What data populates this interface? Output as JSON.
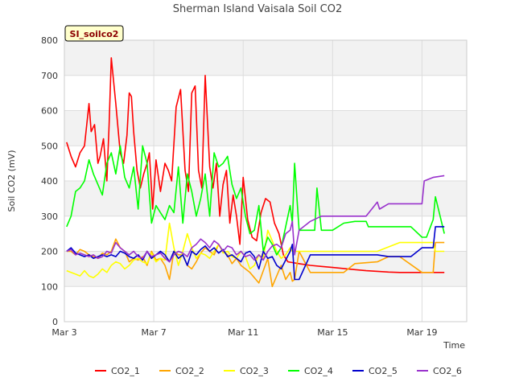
{
  "chart_data": {
    "type": "line",
    "title": "Sherman Island Vaisala Soil CO2",
    "tag": "SI_soilco2",
    "xlabel": "Time",
    "ylabel": "Soil CO2 (mV)",
    "xlim": [
      0,
      18
    ],
    "ylim": [
      0,
      800
    ],
    "yticks": [
      0,
      100,
      200,
      300,
      400,
      500,
      600,
      700,
      800
    ],
    "xticks": [
      {
        "x": 0,
        "label": "Mar 3"
      },
      {
        "x": 4,
        "label": "Mar 7"
      },
      {
        "x": 8,
        "label": "Mar 11"
      },
      {
        "x": 12,
        "label": "Mar 15"
      },
      {
        "x": 16,
        "label": "Mar 19"
      }
    ],
    "grid": true,
    "legend_position": "bottom",
    "series": [
      {
        "name": "CO2_1",
        "color": "#ff0000",
        "x": [
          0.1,
          0.3,
          0.5,
          0.7,
          0.9,
          1.1,
          1.2,
          1.35,
          1.5,
          1.6,
          1.75,
          1.9,
          2.0,
          2.1,
          2.3,
          2.5,
          2.65,
          2.8,
          2.9,
          3.0,
          3.1,
          3.25,
          3.4,
          3.55,
          3.7,
          3.8,
          3.95,
          4.1,
          4.3,
          4.5,
          4.65,
          4.8,
          5.0,
          5.2,
          5.4,
          5.55,
          5.7,
          5.85,
          6.0,
          6.15,
          6.3,
          6.5,
          6.65,
          6.8,
          6.95,
          7.1,
          7.25,
          7.4,
          7.55,
          7.7,
          7.85,
          8.0,
          8.2,
          8.4,
          8.6,
          8.8,
          9.0,
          9.2,
          9.4,
          9.6,
          9.8,
          10.0,
          10.2,
          10.4,
          10.6,
          10.8,
          11.0,
          11.5,
          12.0,
          12.5,
          13.0,
          13.5,
          14.0,
          14.5,
          15.0,
          15.5,
          16.0,
          16.5,
          17.0
        ],
        "y": [
          510,
          470,
          440,
          480,
          500,
          620,
          540,
          560,
          450,
          470,
          520,
          400,
          560,
          750,
          620,
          480,
          450,
          530,
          650,
          640,
          540,
          430,
          380,
          420,
          450,
          480,
          320,
          460,
          370,
          450,
          430,
          400,
          610,
          660,
          430,
          370,
          650,
          670,
          430,
          380,
          700,
          440,
          380,
          450,
          300,
          390,
          430,
          280,
          360,
          300,
          220,
          410,
          290,
          240,
          230,
          310,
          350,
          340,
          280,
          250,
          190,
          170,
          168,
          166,
          164,
          162,
          160,
          157,
          154,
          151,
          148,
          145,
          143,
          141,
          140,
          140,
          140,
          140,
          140
        ]
      },
      {
        "name": "CO2_2",
        "color": "#ffa500",
        "x": [
          0.1,
          0.3,
          0.5,
          0.7,
          0.9,
          1.1,
          1.3,
          1.5,
          1.7,
          1.9,
          2.1,
          2.3,
          2.5,
          2.7,
          2.9,
          3.1,
          3.3,
          3.5,
          3.7,
          3.9,
          4.1,
          4.3,
          4.5,
          4.7,
          4.9,
          5.1,
          5.3,
          5.5,
          5.7,
          5.9,
          6.1,
          6.3,
          6.5,
          6.7,
          6.9,
          7.1,
          7.3,
          7.5,
          7.7,
          7.9,
          8.1,
          8.3,
          8.5,
          8.7,
          8.9,
          9.1,
          9.3,
          9.5,
          9.7,
          9.9,
          10.1,
          10.2,
          10.3,
          10.5,
          11.0,
          11.4,
          11.5,
          12.0,
          12.5,
          13.0,
          14.0,
          14.5,
          14.6,
          15.0,
          16.0,
          16.5,
          16.6,
          17.0
        ],
        "y": [
          200,
          200,
          190,
          205,
          200,
          190,
          185,
          180,
          195,
          190,
          200,
          235,
          210,
          200,
          170,
          180,
          175,
          185,
          160,
          200,
          175,
          180,
          160,
          120,
          200,
          190,
          190,
          160,
          150,
          170,
          195,
          210,
          200,
          190,
          220,
          200,
          190,
          165,
          180,
          160,
          150,
          140,
          125,
          110,
          145,
          180,
          100,
          130,
          160,
          120,
          140,
          115,
          120,
          200,
          140,
          140,
          140,
          140,
          140,
          165,
          170,
          185,
          185,
          185,
          140,
          140,
          225,
          225
        ]
      },
      {
        "name": "CO2_3",
        "color": "#ffff00",
        "x": [
          0.1,
          0.3,
          0.5,
          0.7,
          0.9,
          1.1,
          1.3,
          1.5,
          1.7,
          1.9,
          2.1,
          2.3,
          2.5,
          2.7,
          2.9,
          3.1,
          3.3,
          3.5,
          3.7,
          3.9,
          4.1,
          4.3,
          4.5,
          4.7,
          4.9,
          5.1,
          5.3,
          5.5,
          5.7,
          5.9,
          6.1,
          6.3,
          6.5,
          6.7,
          6.9,
          7.1,
          7.3,
          7.5,
          7.7,
          7.9,
          8.1,
          8.3,
          8.5,
          8.7,
          8.9,
          9.1,
          9.3,
          9.5,
          9.7,
          9.9,
          10.1,
          10.2,
          10.3,
          10.5,
          11.0,
          11.5,
          12.0,
          12.5,
          13.0,
          14.0,
          15.0,
          15.5,
          16.0,
          16.5,
          16.6,
          17.0
        ],
        "y": [
          145,
          140,
          135,
          130,
          145,
          130,
          125,
          135,
          150,
          140,
          160,
          170,
          165,
          150,
          160,
          175,
          180,
          170,
          165,
          195,
          170,
          180,
          175,
          280,
          210,
          160,
          200,
          250,
          210,
          180,
          195,
          190,
          180,
          200,
          220,
          195,
          200,
          185,
          180,
          200,
          185,
          150,
          160,
          190,
          180,
          260,
          230,
          200,
          180,
          190,
          210,
          200,
          200,
          200,
          200,
          200,
          200,
          200,
          200,
          200,
          225,
          225,
          225,
          225,
          200,
          200
        ]
      },
      {
        "name": "CO2_4",
        "color": "#00ff00",
        "x": [
          0.1,
          0.3,
          0.5,
          0.7,
          0.9,
          1.1,
          1.3,
          1.5,
          1.7,
          1.9,
          2.1,
          2.3,
          2.5,
          2.7,
          2.9,
          3.1,
          3.3,
          3.5,
          3.7,
          3.9,
          4.1,
          4.3,
          4.5,
          4.7,
          4.9,
          5.1,
          5.3,
          5.5,
          5.7,
          5.9,
          6.1,
          6.3,
          6.5,
          6.7,
          6.9,
          7.1,
          7.3,
          7.5,
          7.7,
          7.9,
          8.1,
          8.3,
          8.5,
          8.7,
          8.9,
          9.1,
          9.3,
          9.5,
          9.7,
          9.9,
          10.1,
          10.2,
          10.3,
          10.5,
          11.0,
          11.2,
          11.3,
          11.5,
          12.0,
          12.5,
          13.0,
          13.5,
          13.6,
          14.0,
          14.5,
          14.6,
          15.0,
          15.5,
          16.0,
          16.2,
          16.5,
          16.6,
          17.0
        ],
        "y": [
          270,
          300,
          370,
          380,
          400,
          460,
          420,
          390,
          360,
          450,
          480,
          420,
          500,
          410,
          380,
          440,
          320,
          500,
          450,
          280,
          330,
          310,
          290,
          330,
          310,
          440,
          280,
          420,
          370,
          300,
          350,
          420,
          300,
          480,
          440,
          450,
          470,
          390,
          350,
          380,
          300,
          250,
          260,
          330,
          200,
          240,
          220,
          190,
          210,
          270,
          330,
          280,
          450,
          260,
          260,
          260,
          380,
          260,
          260,
          280,
          285,
          285,
          270,
          270,
          270,
          270,
          270,
          270,
          240,
          240,
          290,
          355,
          250
        ]
      },
      {
        "name": "CO2_5",
        "color": "#0000cd",
        "x": [
          0.1,
          0.3,
          0.5,
          0.7,
          0.9,
          1.1,
          1.3,
          1.5,
          1.7,
          1.9,
          2.1,
          2.3,
          2.5,
          2.7,
          2.9,
          3.1,
          3.3,
          3.5,
          3.7,
          3.9,
          4.1,
          4.3,
          4.5,
          4.7,
          4.9,
          5.1,
          5.3,
          5.5,
          5.7,
          5.9,
          6.1,
          6.3,
          6.5,
          6.7,
          6.9,
          7.1,
          7.3,
          7.5,
          7.7,
          7.9,
          8.1,
          8.3,
          8.5,
          8.7,
          8.9,
          9.1,
          9.3,
          9.5,
          9.7,
          9.9,
          10.1,
          10.2,
          10.3,
          10.5,
          11.0,
          11.5,
          12.0,
          12.5,
          13.0,
          14.0,
          14.5,
          14.6,
          15.0,
          15.5,
          16.0,
          16.5,
          16.6,
          17.0
        ],
        "y": [
          200,
          210,
          195,
          190,
          185,
          190,
          180,
          185,
          190,
          185,
          190,
          185,
          200,
          195,
          185,
          180,
          190,
          175,
          200,
          180,
          190,
          200,
          190,
          170,
          200,
          180,
          190,
          160,
          200,
          190,
          205,
          215,
          200,
          210,
          195,
          205,
          185,
          190,
          180,
          170,
          195,
          200,
          185,
          150,
          200,
          180,
          185,
          160,
          150,
          175,
          200,
          220,
          120,
          120,
          190,
          190,
          190,
          190,
          190,
          190,
          185,
          185,
          185,
          185,
          210,
          210,
          270,
          270
        ]
      },
      {
        "name": "CO2_6",
        "color": "#9932cc",
        "x": [
          0.1,
          0.3,
          0.5,
          0.7,
          0.9,
          1.1,
          1.3,
          1.5,
          1.7,
          1.9,
          2.1,
          2.3,
          2.5,
          2.7,
          2.9,
          3.1,
          3.3,
          3.5,
          3.7,
          3.9,
          4.1,
          4.3,
          4.5,
          4.7,
          4.9,
          5.1,
          5.3,
          5.5,
          5.7,
          5.9,
          6.1,
          6.3,
          6.5,
          6.7,
          6.9,
          7.1,
          7.3,
          7.5,
          7.7,
          7.9,
          8.1,
          8.3,
          8.5,
          8.7,
          8.9,
          9.1,
          9.3,
          9.5,
          9.7,
          9.9,
          10.1,
          10.2,
          10.3,
          10.5,
          11.0,
          11.5,
          12.0,
          12.5,
          13.0,
          13.5,
          14.0,
          14.1,
          14.5,
          15.0,
          15.5,
          16.0,
          16.1,
          16.5,
          17.0
        ],
        "y": [
          200,
          205,
          190,
          195,
          190,
          185,
          190,
          180,
          185,
          200,
          195,
          225,
          210,
          200,
          190,
          200,
          185,
          180,
          200,
          185,
          190,
          195,
          180,
          170,
          190,
          200,
          195,
          185,
          210,
          220,
          235,
          225,
          210,
          230,
          220,
          200,
          215,
          210,
          190,
          200,
          185,
          190,
          175,
          190,
          175,
          200,
          215,
          220,
          210,
          250,
          260,
          285,
          190,
          260,
          285,
          300,
          300,
          300,
          300,
          300,
          340,
          320,
          335,
          335,
          335,
          335,
          400,
          410,
          415
        ]
      }
    ]
  }
}
